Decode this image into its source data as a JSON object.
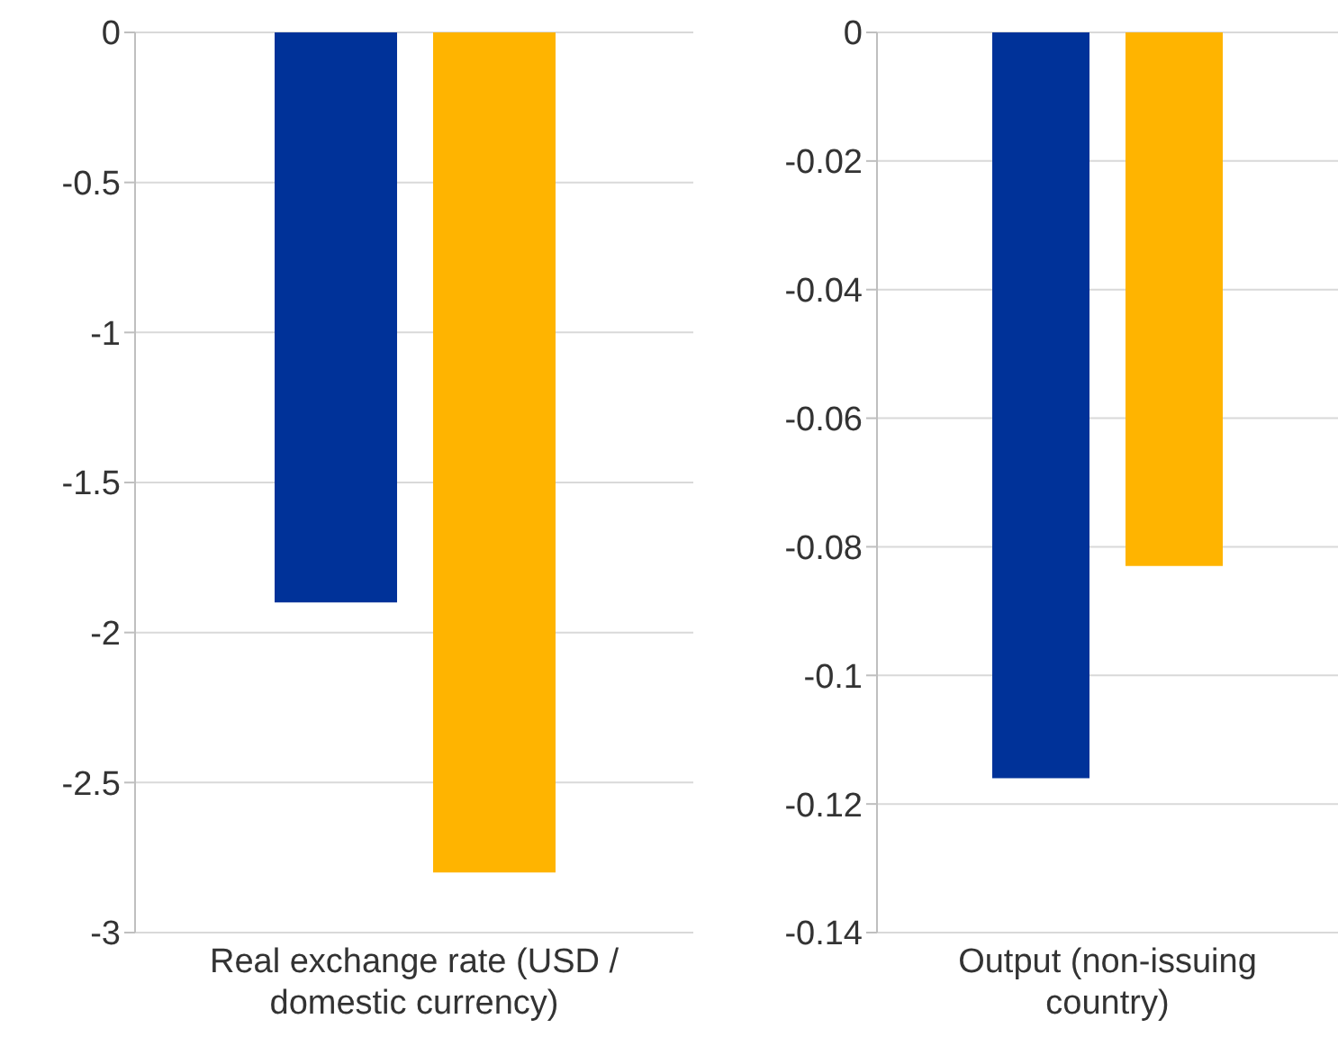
{
  "chart_data": [
    {
      "type": "bar",
      "categories": [
        "Real exchange rate (USD / domestic currency)"
      ],
      "series": [
        {
          "color": "#003299",
          "values": [
            -1.9
          ]
        },
        {
          "color": "#ffb400",
          "values": [
            -2.8
          ]
        }
      ],
      "ylim": [
        -3,
        0
      ],
      "yticks": [
        -3,
        -2.5,
        -2,
        -1.5,
        -1,
        -0.5,
        0
      ],
      "grid": "y"
    },
    {
      "type": "bar",
      "categories": [
        "Output (non-issuing country)"
      ],
      "series": [
        {
          "color": "#003299",
          "values": [
            -0.116
          ]
        },
        {
          "color": "#ffb400",
          "values": [
            -0.083
          ]
        }
      ],
      "ylim": [
        -0.14,
        0
      ],
      "yticks": [
        -0.14,
        -0.12,
        -0.1,
        -0.08,
        -0.06,
        -0.04,
        -0.02,
        0
      ],
      "grid": "y"
    }
  ]
}
